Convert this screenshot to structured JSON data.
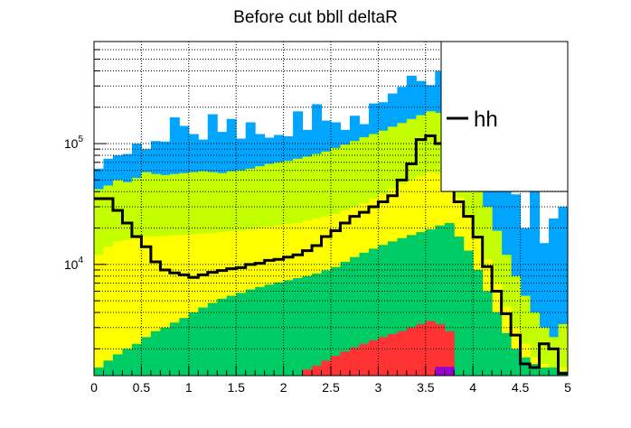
{
  "chart_data": {
    "type": "histogram",
    "title": "Before cut bbll deltaR",
    "xlabel": "",
    "ylabel": "",
    "bin_width": 0.1,
    "xlim": [
      0,
      5
    ],
    "ylim": [
      1200,
      700000
    ],
    "yscale": "log",
    "grid": true,
    "x_ticks": [
      {
        "value": 0,
        "label": "0"
      },
      {
        "value": 0.5,
        "label": "0.5"
      },
      {
        "value": 1,
        "label": "1"
      },
      {
        "value": 1.5,
        "label": "1.5"
      },
      {
        "value": 2,
        "label": "2"
      },
      {
        "value": 2.5,
        "label": "2.5"
      },
      {
        "value": 3,
        "label": "3"
      },
      {
        "value": 3.5,
        "label": "3.5"
      },
      {
        "value": 4,
        "label": "4"
      },
      {
        "value": 4.5,
        "label": "4.5"
      },
      {
        "value": 5,
        "label": "5"
      }
    ],
    "y_ticks": [
      {
        "value": 10000,
        "base": "10",
        "exp": "4"
      },
      {
        "value": 100000,
        "base": "10",
        "exp": "5"
      }
    ],
    "stack": [
      {
        "color": "#00a5ff",
        "values": [
          62000,
          75000,
          80000,
          82000,
          100000,
          90000,
          105000,
          104000,
          165000,
          140000,
          120000,
          108000,
          175000,
          125000,
          160000,
          110000,
          150000,
          120000,
          112000,
          118000,
          115000,
          185000,
          130000,
          212000,
          155000,
          150000,
          130000,
          170000,
          145000,
          215000,
          220000,
          260000,
          295000,
          365000,
          330000,
          305000,
          400000,
          440000,
          160000,
          150000,
          105000,
          80000,
          45000,
          40000,
          38000,
          20000,
          45000,
          15000,
          24000,
          30000
        ]
      },
      {
        "color": "#c3ff00",
        "values": [
          42000,
          45000,
          50000,
          48000,
          52000,
          58000,
          56000,
          55000,
          56000,
          57000,
          58000,
          59000,
          58000,
          57000,
          59000,
          60000,
          62000,
          65000,
          68000,
          70000,
          72000,
          75000,
          78000,
          82000,
          86000,
          92000,
          98000,
          105000,
          113000,
          120000,
          128000,
          138000,
          148000,
          160000,
          172000,
          185000,
          180000,
          150000,
          110000,
          75000,
          45000,
          30000,
          19000,
          12000,
          8000,
          5500,
          4000,
          3000,
          2500,
          3200
        ]
      },
      {
        "color": "#ffff00",
        "values": [
          12000,
          14000,
          15500,
          16000,
          16500,
          17000,
          17000,
          17200,
          17400,
          17600,
          17800,
          18000,
          18200,
          18500,
          18800,
          19000,
          19500,
          20000,
          20500,
          21000,
          21500,
          22000,
          23000,
          24000,
          25000,
          26000,
          28000,
          30000,
          32000,
          35000,
          38000,
          42000,
          46000,
          50000,
          54000,
          58000,
          56000,
          48000,
          36000,
          26000,
          17000,
          11000,
          7000,
          4500,
          3000,
          2200,
          1700,
          1500,
          1400,
          1400
        ]
      },
      {
        "color": "#00cc66",
        "values": [
          1400,
          1600,
          1800,
          2000,
          2200,
          2500,
          2800,
          3000,
          3300,
          3600,
          4000,
          4400,
          4800,
          5200,
          5500,
          5800,
          6200,
          6500,
          6800,
          7100,
          7400,
          7700,
          8000,
          8400,
          8900,
          9500,
          10500,
          11500,
          12500,
          13500,
          14500,
          15500,
          16500,
          17500,
          18500,
          19500,
          21000,
          22000,
          17000,
          13000,
          9000,
          6000,
          4000,
          2700,
          2000,
          1700,
          1500,
          1400,
          1400,
          1300
        ]
      },
      {
        "color": "#ff3333",
        "values": [
          1200,
          1200,
          1200,
          1200,
          1200,
          1200,
          1200,
          1200,
          1200,
          1200,
          1200,
          1200,
          1200,
          1200,
          1200,
          1200,
          1200,
          1200,
          1200,
          1200,
          1200,
          1200,
          1350,
          1450,
          1600,
          1750,
          1900,
          2050,
          2200,
          2350,
          2500,
          2650,
          2800,
          3000,
          3200,
          3400,
          3200,
          2800,
          1200,
          1200,
          1200,
          1200,
          1200,
          1200,
          1200,
          1200,
          1200,
          1200,
          1200,
          1200
        ]
      },
      {
        "color": "#9900cc",
        "values": [
          1200,
          1200,
          1200,
          1200,
          1200,
          1200,
          1200,
          1200,
          1200,
          1200,
          1200,
          1200,
          1200,
          1200,
          1200,
          1200,
          1200,
          1200,
          1200,
          1200,
          1200,
          1200,
          1200,
          1200,
          1200,
          1200,
          1200,
          1200,
          1200,
          1200,
          1200,
          1200,
          1200,
          1200,
          1200,
          1200,
          1420,
          1420,
          1200,
          1200,
          1200,
          1200,
          1200,
          1200,
          1200,
          1200,
          1200,
          1200,
          1200,
          1200
        ]
      }
    ],
    "overlay": {
      "name": "hh",
      "color": "#000000",
      "values": [
        35000,
        35000,
        28000,
        22000,
        17000,
        14000,
        10500,
        9000,
        8500,
        8200,
        7800,
        8200,
        8600,
        8900,
        9200,
        9400,
        10000,
        10200,
        10800,
        11000,
        11500,
        12000,
        13000,
        14300,
        17000,
        19000,
        22000,
        25000,
        27000,
        30000,
        33000,
        37000,
        50000,
        68000,
        108000,
        116000,
        100000,
        73000,
        33000,
        25000,
        16800,
        9600,
        6000,
        3900,
        2600,
        1500,
        1400,
        2200,
        2000,
        1250
      ]
    },
    "legend": {
      "position": "top-right",
      "entries": [
        {
          "label": "hh",
          "style": "line",
          "color": "#000000"
        }
      ]
    }
  }
}
